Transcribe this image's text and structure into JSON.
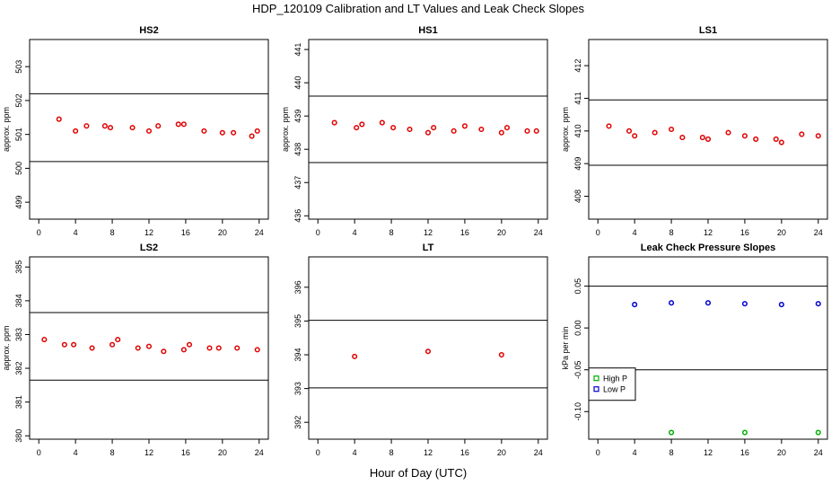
{
  "figure": {
    "title": "HDP_120109  Calibration and LT Values and Leak Check Slopes",
    "xlabel": "Hour of Day (UTC)"
  },
  "chart_data": [
    {
      "type": "scatter",
      "title": "HS2",
      "ylabel": "approx. ppm",
      "xlim": [
        -1,
        25
      ],
      "xticks": [
        0,
        4,
        8,
        12,
        16,
        20,
        24
      ],
      "ylim": [
        498.5,
        503.8
      ],
      "yticks": [
        499,
        500,
        501,
        502,
        503
      ],
      "hlines": [
        500.2,
        502.2
      ],
      "marker_color": "#e00000",
      "series": [
        {
          "x": [
            2.2,
            4.0,
            5.2,
            7.2,
            7.8,
            10.2,
            12.0,
            13.0,
            15.2,
            15.8,
            18.0,
            20.0,
            21.2,
            23.2,
            23.8
          ],
          "y": [
            501.45,
            501.1,
            501.25,
            501.25,
            501.2,
            501.2,
            501.1,
            501.25,
            501.3,
            501.3,
            501.1,
            501.05,
            501.05,
            500.95,
            501.1
          ]
        }
      ]
    },
    {
      "type": "scatter",
      "title": "HS1",
      "ylabel": "approx. ppm",
      "xlim": [
        -1,
        25
      ],
      "xticks": [
        0,
        4,
        8,
        12,
        16,
        20,
        24
      ],
      "ylim": [
        435.9,
        441.3
      ],
      "yticks": [
        436,
        437,
        438,
        439,
        440,
        441
      ],
      "hlines": [
        437.6,
        439.6
      ],
      "marker_color": "#e00000",
      "series": [
        {
          "x": [
            1.8,
            4.2,
            4.8,
            7.0,
            8.2,
            10.0,
            12.0,
            12.6,
            14.8,
            16.0,
            17.8,
            20.0,
            20.6,
            22.8,
            23.8
          ],
          "y": [
            438.8,
            438.65,
            438.75,
            438.8,
            438.65,
            438.6,
            438.5,
            438.65,
            438.55,
            438.7,
            438.6,
            438.5,
            438.65,
            438.55,
            438.55
          ]
        }
      ]
    },
    {
      "type": "scatter",
      "title": "LS1",
      "ylabel": "approx. ppm",
      "xlim": [
        -1,
        25
      ],
      "xticks": [
        0,
        4,
        8,
        12,
        16,
        20,
        24
      ],
      "ylim": [
        407.3,
        412.8
      ],
      "yticks": [
        408,
        409,
        410,
        411,
        412
      ],
      "hlines": [
        408.95,
        410.95
      ],
      "marker_color": "#e00000",
      "series": [
        {
          "x": [
            1.2,
            3.4,
            4.0,
            6.2,
            8.0,
            9.2,
            11.4,
            12.0,
            14.2,
            16.0,
            17.2,
            19.4,
            20.0,
            22.2,
            24.0
          ],
          "y": [
            410.15,
            410.0,
            409.85,
            409.95,
            410.05,
            409.8,
            409.8,
            409.75,
            409.95,
            409.85,
            409.75,
            409.75,
            409.65,
            409.9,
            409.85
          ]
        }
      ]
    },
    {
      "type": "scatter",
      "title": "LS2",
      "ylabel": "approx. ppm",
      "xlim": [
        -1,
        25
      ],
      "xticks": [
        0,
        4,
        8,
        12,
        16,
        20,
        24
      ],
      "ylim": [
        379.9,
        385.3
      ],
      "yticks": [
        380,
        381,
        382,
        383,
        384,
        385
      ],
      "hlines": [
        381.65,
        383.65
      ],
      "marker_color": "#e00000",
      "series": [
        {
          "x": [
            0.6,
            2.8,
            3.8,
            5.8,
            8.0,
            8.6,
            10.8,
            12.0,
            13.6,
            15.8,
            16.4,
            18.6,
            19.6,
            21.6,
            23.8
          ],
          "y": [
            382.85,
            382.7,
            382.7,
            382.6,
            382.7,
            382.85,
            382.6,
            382.65,
            382.5,
            382.55,
            382.7,
            382.6,
            382.6,
            382.6,
            382.55
          ]
        }
      ]
    },
    {
      "type": "scatter",
      "title": "LT",
      "xlim": [
        -1,
        25
      ],
      "xticks": [
        0,
        4,
        8,
        12,
        16,
        20,
        24
      ],
      "ylim": [
        391.5,
        396.9
      ],
      "yticks": [
        392,
        393,
        394,
        395,
        396
      ],
      "hlines": [
        393.02,
        395.02
      ],
      "marker_color": "#e00000",
      "series": [
        {
          "x": [
            4.0,
            12.0,
            20.0
          ],
          "y": [
            393.95,
            394.1,
            394.0
          ]
        }
      ]
    },
    {
      "type": "scatter",
      "title": "Leak Check Pressure Slopes",
      "ylabel": "kPa per min",
      "xlim": [
        -1,
        25
      ],
      "xticks": [
        0,
        4,
        8,
        12,
        16,
        20,
        24
      ],
      "ylim": [
        -0.133,
        0.085
      ],
      "yticks": [
        -0.1,
        -0.05,
        0.0,
        0.05
      ],
      "ytick_labels": [
        "-0.10",
        "-0.05",
        "0.00",
        "0.05"
      ],
      "hlines": [
        0.05,
        -0.05
      ],
      "legend": {
        "position": "left",
        "entries": [
          {
            "label": "High P",
            "color": "#00b000"
          },
          {
            "label": "Low P",
            "color": "#0000d0"
          }
        ]
      },
      "series": [
        {
          "name": "High P",
          "color": "#00b000",
          "x": [
            8,
            16,
            24
          ],
          "y": [
            -0.125,
            -0.125,
            -0.125
          ]
        },
        {
          "name": "Low P",
          "color": "#0000d0",
          "x": [
            4,
            8,
            12,
            16,
            20,
            24
          ],
          "y": [
            0.028,
            0.03,
            0.03,
            0.029,
            0.028,
            0.029
          ]
        }
      ]
    }
  ]
}
